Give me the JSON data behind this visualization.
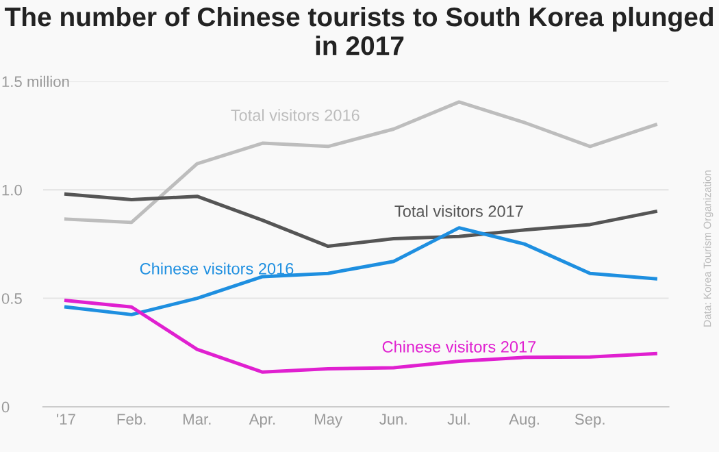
{
  "chart_data": {
    "type": "line",
    "title": "The number of Chinese tourists to South Korea plunged in 2017",
    "categories": [
      "'17",
      "Feb.",
      "Mar.",
      "Apr.",
      "May",
      "Jun.",
      "Jul.",
      "Aug.",
      "Sep.",
      null
    ],
    "series": [
      {
        "name": "Total visitors 2016",
        "color": "#bdbdbd",
        "values": [
          0.865,
          0.85,
          1.12,
          1.215,
          1.2,
          1.28,
          1.405,
          1.31,
          1.2,
          1.3
        ]
      },
      {
        "name": "Total visitors 2017",
        "color": "#555555",
        "values": [
          0.98,
          0.955,
          0.97,
          0.86,
          0.74,
          0.775,
          0.785,
          0.815,
          0.84,
          0.9
        ]
      },
      {
        "name": "Chinese visitors 2016",
        "color": "#1e8fe0",
        "values": [
          0.46,
          0.425,
          0.5,
          0.6,
          0.615,
          0.67,
          0.825,
          0.75,
          0.615,
          0.59
        ]
      },
      {
        "name": "Chinese visitors 2017",
        "color": "#e020d0",
        "values": [
          0.49,
          0.46,
          0.265,
          0.16,
          0.175,
          0.18,
          0.21,
          0.228,
          0.23,
          0.245
        ]
      }
    ],
    "ylim": [
      0,
      1.5
    ],
    "yticks": [
      0,
      0.5,
      {
        "value": 1,
        "label": "1.0"
      },
      {
        "value": 1.5,
        "label": "1.5 million"
      }
    ],
    "grid": "y",
    "legend": false,
    "annotations": [
      "Data: Korea Tourism Organization"
    ]
  }
}
